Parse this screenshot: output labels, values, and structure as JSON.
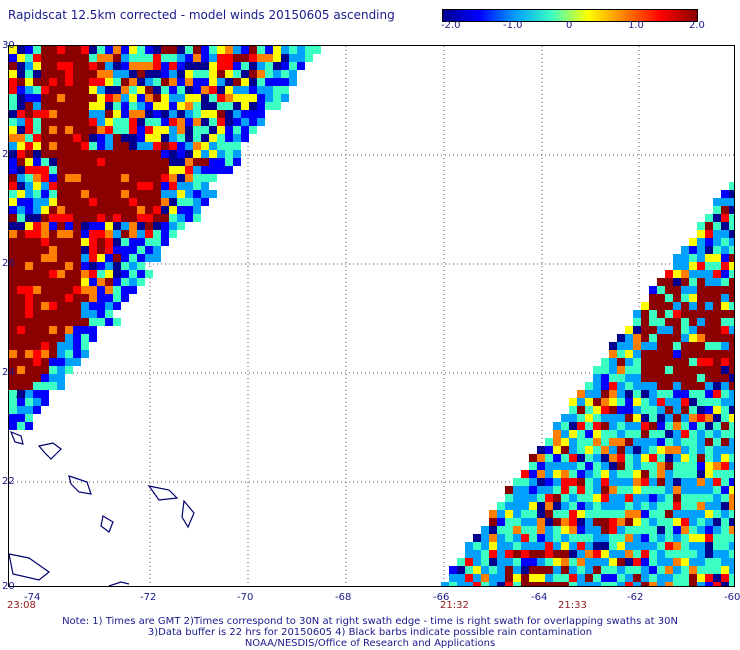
{
  "title": "Rapidscat 12.5km corrected - model winds 20150605 ascending",
  "colorbar": {
    "ticks": [
      "-2.0",
      "-1.0",
      "0",
      "1.0",
      "2.0"
    ],
    "colors": [
      "#00008f",
      "#0000ff",
      "#00a0ff",
      "#3cffc3",
      "#ffff00",
      "#ff8000",
      "#ff0000",
      "#8b0000"
    ]
  },
  "axes": {
    "lon_ticks": [
      "-74",
      "-72",
      "-70",
      "-68",
      "-66",
      "-64",
      "-62",
      "-60"
    ],
    "lat_ticks": [
      "20",
      "22",
      "24",
      "26",
      "28",
      "30"
    ]
  },
  "swath_times": [
    "23:08",
    "21:32",
    "21:33"
  ],
  "notes": [
    "Note: 1) Times are GMT 2)Times correspond to 30N at right swath edge - time is right swath for overlapping swaths at 30N",
    "3)Data buffer is 22 hrs for 20150605 4) Black barbs indicate possible rain contamination",
    "NOAA/NESDIS/Office of Research and Applications"
  ]
}
